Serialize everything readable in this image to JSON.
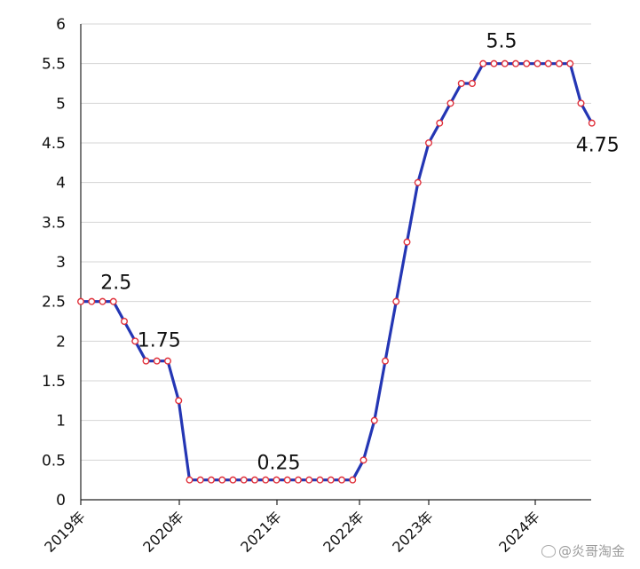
{
  "chart_data": {
    "type": "line",
    "title": "",
    "xlabel": "",
    "ylabel": "",
    "ylim": [
      0,
      6
    ],
    "yticks": [
      "0",
      "0.5",
      "1",
      "1.5",
      "2",
      "2.5",
      "3",
      "3.5",
      "4",
      "4.5",
      "5",
      "5.5",
      "6"
    ],
    "xticks": [
      "2019年",
      "2020年",
      "2021年",
      "2022年",
      "2023年",
      "2024年"
    ],
    "grid": true,
    "legend": "none",
    "series_color": "#2436b4",
    "marker_color": "#e0303a",
    "values": [
      2.5,
      2.5,
      2.5,
      2.5,
      2.25,
      2.0,
      1.75,
      1.75,
      1.75,
      1.25,
      0.25,
      0.25,
      0.25,
      0.25,
      0.25,
      0.25,
      0.25,
      0.25,
      0.25,
      0.25,
      0.25,
      0.25,
      0.25,
      0.25,
      0.25,
      0.25,
      0.5,
      1.0,
      1.75,
      2.5,
      3.25,
      4.0,
      4.5,
      4.75,
      5.0,
      5.25,
      5.25,
      5.5,
      5.5,
      5.5,
      5.5,
      5.5,
      5.5,
      5.5,
      5.5,
      5.5,
      5.0,
      4.75
    ],
    "annotations": [
      {
        "text": "2.5",
        "point": 1
      },
      {
        "text": "1.75",
        "point": 7
      },
      {
        "text": "0.25",
        "point": 18
      },
      {
        "text": "5.5",
        "point": 42
      },
      {
        "text": "4.75",
        "point": 47
      }
    ]
  },
  "watermark": "@炎哥淘金"
}
